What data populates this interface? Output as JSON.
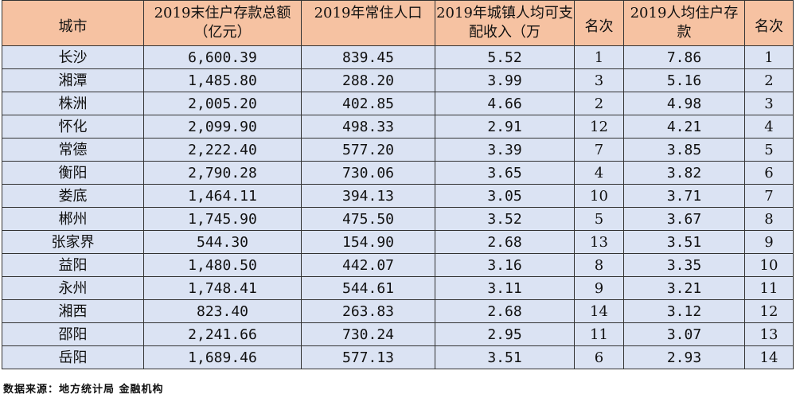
{
  "table": {
    "headers": [
      "城市",
      "2019末住户存款总额（亿元）",
      "2019年常住人口",
      "2019年城镇人均可支配收入（万",
      "名次",
      "2019人均住户存款",
      "名次"
    ],
    "rows": [
      [
        "长沙",
        "6,600.39",
        "839.45",
        "5.52",
        "1",
        "7.86",
        "1"
      ],
      [
        "湘潭",
        "1,485.80",
        "288.20",
        "3.99",
        "3",
        "5.16",
        "2"
      ],
      [
        "株洲",
        "2,005.20",
        "402.85",
        "4.66",
        "2",
        "4.98",
        "3"
      ],
      [
        "怀化",
        "2,099.90",
        "498.33",
        "2.91",
        "12",
        "4.21",
        "4"
      ],
      [
        "常德",
        "2,222.40",
        "577.20",
        "3.39",
        "7",
        "3.85",
        "5"
      ],
      [
        "衡阳",
        "2,790.28",
        "730.06",
        "3.65",
        "4",
        "3.82",
        "6"
      ],
      [
        "娄底",
        "1,464.11",
        "394.13",
        "3.05",
        "10",
        "3.71",
        "7"
      ],
      [
        "郴州",
        "1,745.90",
        "475.50",
        "3.52",
        "5",
        "3.67",
        "8"
      ],
      [
        "张家界",
        "544.30",
        "154.90",
        "2.68",
        "13",
        "3.51",
        "9"
      ],
      [
        "益阳",
        "1,480.50",
        "442.07",
        "3.16",
        "8",
        "3.35",
        "10"
      ],
      [
        "永州",
        "1,748.41",
        "544.61",
        "3.11",
        "9",
        "3.21",
        "11"
      ],
      [
        "湘西",
        "823.40",
        "263.83",
        "2.68",
        "14",
        "3.12",
        "12"
      ],
      [
        "邵阳",
        "2,241.66",
        "730.24",
        "2.95",
        "11",
        "3.07",
        "13"
      ],
      [
        "岳阳",
        "1,689.46",
        "577.13",
        "3.51",
        "6",
        "2.93",
        "14"
      ]
    ]
  },
  "source": "数据来源：地方统计局 金融机构",
  "colors": {
    "header_bg": "#f6c2a2",
    "cell_bg": "#dbe3f3",
    "border": "#333333"
  }
}
